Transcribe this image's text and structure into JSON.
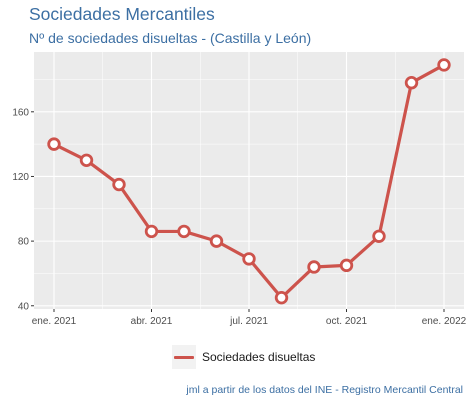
{
  "title": "Sociedades Mercantiles",
  "subtitle": "Nº de sociedades disueltas - (Castilla y León)",
  "legend": {
    "label": "Sociedades disueltas"
  },
  "caption": "jml a partir de los datos del INE - Registro Mercantil Central",
  "colors": {
    "line": "#cd534c",
    "panel": "#ebebeb",
    "grid": "#ffffff",
    "text": "#3c6fa3"
  },
  "chart_data": {
    "type": "line",
    "x": [
      "2021-01",
      "2021-02",
      "2021-03",
      "2021-04",
      "2021-05",
      "2021-06",
      "2021-07",
      "2021-08",
      "2021-09",
      "2021-10",
      "2021-11",
      "2021-12",
      "2022-01"
    ],
    "series": [
      {
        "name": "Sociedades disueltas",
        "values": [
          140,
          130,
          115,
          86,
          86,
          80,
          69,
          45,
          64,
          65,
          83,
          178,
          189
        ]
      }
    ],
    "x_tick_labels": [
      "ene. 2021",
      "abr. 2021",
      "jul. 2021",
      "oct. 2021",
      "ene. 2022"
    ],
    "x_tick_index": [
      0,
      3,
      6,
      9,
      12
    ],
    "y_ticks": [
      40,
      80,
      120,
      160
    ],
    "ylim": [
      38,
      197
    ],
    "grid": true,
    "legend_position": "bottom"
  }
}
